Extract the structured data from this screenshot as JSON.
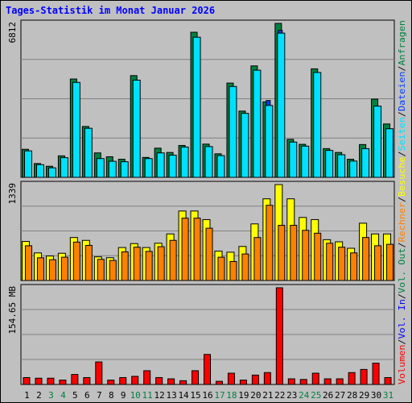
{
  "title": "Tages-Statistik im Monat Januar 2026",
  "colors": {
    "hits": "#008040",
    "files": "#0040ff",
    "pages": "#00e0ff",
    "visits": "#ffff00",
    "sites": "#ff8000",
    "kbytes": "#ff0000",
    "vol_in": "#0000ff",
    "vol_out": "#008040",
    "weekend": "#008040",
    "weekday": "#000000"
  },
  "chart_data": [
    {
      "type": "bar",
      "panel": "top",
      "y_max_label": "6812",
      "ylim": [
        0,
        6812
      ],
      "categories": [
        "1",
        "2",
        "3",
        "4",
        "5",
        "6",
        "7",
        "8",
        "9",
        "10",
        "11",
        "12",
        "13",
        "14",
        "15",
        "16",
        "17",
        "18",
        "19",
        "20",
        "21",
        "22",
        "23",
        "24",
        "25",
        "26",
        "27",
        "28",
        "29",
        "30",
        "31"
      ],
      "series": [
        {
          "name": "Anfragen",
          "values": [
            1240,
            610,
            490,
            950,
            4350,
            2250,
            1080,
            910,
            800,
            4500,
            880,
            1290,
            1100,
            1410,
            6420,
            1470,
            1040,
            4170,
            2930,
            4930,
            3340,
            6812,
            1680,
            1460,
            4800,
            1270,
            1100,
            800,
            1450,
            3460,
            2360
          ]
        },
        {
          "name": "Dateien",
          "values": [
            1080,
            500,
            380,
            780,
            3300,
            1600,
            780,
            600,
            550,
            3250,
            580,
            950,
            800,
            1050,
            4300,
            1100,
            780,
            3000,
            2100,
            3400,
            3400,
            6500,
            1200,
            1100,
            3500,
            900,
            800,
            550,
            1050,
            2400,
            1700
          ]
        },
        {
          "name": "Seiten",
          "values": [
            1170,
            560,
            420,
            870,
            4200,
            2170,
            830,
            710,
            690,
            4300,
            830,
            1080,
            980,
            1340,
            6200,
            1360,
            960,
            4020,
            2830,
            4740,
            3180,
            6380,
            1560,
            1380,
            4640,
            1190,
            1000,
            720,
            1270,
            3150,
            2150
          ]
        }
      ],
      "side_labels": [
        "Anfragen",
        "Dateien",
        "Seiten"
      ]
    },
    {
      "type": "bar",
      "panel": "middle",
      "y_max_label": "1339",
      "ylim": [
        0,
        1339
      ],
      "series": [
        {
          "name": "Besuche",
          "values": [
            545,
            385,
            342,
            380,
            600,
            560,
            330,
            318,
            460,
            515,
            460,
            520,
            650,
            970,
            970,
            850,
            410,
            395,
            475,
            790,
            1140,
            1339,
            1140,
            880,
            850,
            570,
            540,
            450,
            800,
            650,
            650
          ]
        },
        {
          "name": "Rechner",
          "values": [
            485,
            317,
            290,
            325,
            536,
            490,
            295,
            280,
            400,
            465,
            406,
            472,
            560,
            870,
            870,
            730,
            325,
            265,
            370,
            600,
            1050,
            770,
            770,
            700,
            660,
            520,
            465,
            385,
            600,
            485,
            505
          ]
        }
      ],
      "side_labels": [
        "Besuche",
        "Rechner"
      ]
    },
    {
      "type": "bar",
      "panel": "bottom",
      "y_max_label": "154.65 MB",
      "ylim": [
        0,
        154.65
      ],
      "series": [
        {
          "name": "Volumen",
          "values": [
            11,
            10,
            10,
            7,
            16,
            11,
            36,
            7,
            11,
            13,
            22,
            11,
            9,
            6,
            22,
            48,
            5,
            18,
            7,
            15,
            19,
            154.65,
            9,
            8,
            18,
            9,
            9,
            19,
            24,
            34,
            11
          ]
        }
      ],
      "side_labels": [
        "Volumen",
        "Vol. In",
        "Vol. Out"
      ]
    }
  ],
  "separators": [
    "/",
    "/",
    "/",
    "/",
    "/",
    "/",
    "/",
    "/",
    "/"
  ],
  "weekend_days": [
    "3",
    "4",
    "10",
    "11",
    "17",
    "18",
    "24",
    "25",
    "31"
  ]
}
